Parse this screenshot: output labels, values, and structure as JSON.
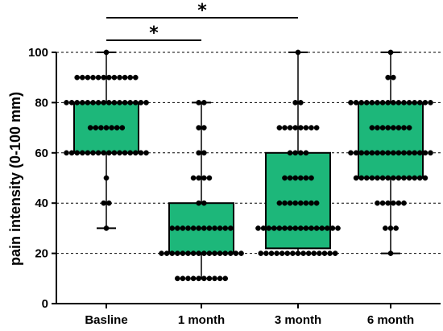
{
  "chart_data": {
    "type": "box",
    "ylabel": "pain intensity (0-100 mm)",
    "ylim": [
      0,
      100
    ],
    "yticks": [
      0,
      20,
      40,
      60,
      80,
      100
    ],
    "categories": [
      "Basline",
      "1 month",
      "3 month",
      "6 month"
    ],
    "box_color": "#1db77a",
    "grid": "horizontal-dashed",
    "boxes": [
      {
        "category": "Basline",
        "min": 30,
        "q1": 60,
        "median": 80,
        "q3": 80,
        "max": 100
      },
      {
        "category": "1 month",
        "min": 10,
        "q1": 20,
        "median": 20,
        "q3": 40,
        "max": 80
      },
      {
        "category": "3 month",
        "min": 20,
        "q1": 22,
        "median": 30,
        "q3": 60,
        "max": 100
      },
      {
        "category": "6 month",
        "min": 20,
        "q1": 50,
        "median": 60,
        "q3": 80,
        "max": 100
      }
    ],
    "points": [
      {
        "category": "Basline",
        "groups": [
          {
            "y": 100,
            "n": 1
          },
          {
            "y": 90,
            "n": 12
          },
          {
            "y": 80,
            "n": 16
          },
          {
            "y": 70,
            "n": 7
          },
          {
            "y": 60,
            "n": 16
          },
          {
            "y": 50,
            "n": 1
          },
          {
            "y": 40,
            "n": 2
          },
          {
            "y": 30,
            "n": 1
          }
        ]
      },
      {
        "category": "1 month",
        "groups": [
          {
            "y": 80,
            "n": 2
          },
          {
            "y": 70,
            "n": 2
          },
          {
            "y": 60,
            "n": 2
          },
          {
            "y": 50,
            "n": 4
          },
          {
            "y": 40,
            "n": 2
          },
          {
            "y": 30,
            "n": 12
          },
          {
            "y": 20,
            "n": 16
          },
          {
            "y": 10,
            "n": 10
          }
        ]
      },
      {
        "category": "3 month",
        "groups": [
          {
            "y": 100,
            "n": 1
          },
          {
            "y": 80,
            "n": 2
          },
          {
            "y": 70,
            "n": 8
          },
          {
            "y": 60,
            "n": 4
          },
          {
            "y": 50,
            "n": 6
          },
          {
            "y": 40,
            "n": 8
          },
          {
            "y": 30,
            "n": 16
          },
          {
            "y": 20,
            "n": 15
          }
        ]
      },
      {
        "category": "6 month",
        "groups": [
          {
            "y": 100,
            "n": 1
          },
          {
            "y": 90,
            "n": 2
          },
          {
            "y": 80,
            "n": 16
          },
          {
            "y": 70,
            "n": 8
          },
          {
            "y": 60,
            "n": 16
          },
          {
            "y": 50,
            "n": 14
          },
          {
            "y": 40,
            "n": 6
          },
          {
            "y": 30,
            "n": 3
          },
          {
            "y": 20,
            "n": 1
          }
        ]
      }
    ],
    "significance": [
      {
        "from": "Basline",
        "to": "1 month",
        "label": "*"
      },
      {
        "from": "Basline",
        "to": "3 month",
        "label": "*"
      }
    ]
  }
}
